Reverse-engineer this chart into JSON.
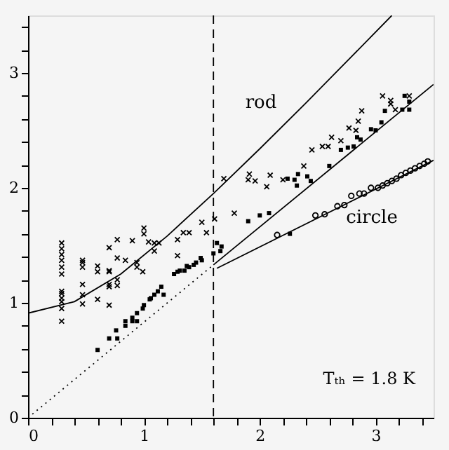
{
  "chart_data": {
    "type": "scatter",
    "xlim": [
      0,
      3.5
    ],
    "ylim": [
      0,
      3.5
    ],
    "xticks": [
      0,
      {
        "value": 0.2,
        "label": null
      },
      {
        "value": 0.4,
        "label": null
      },
      {
        "value": 0.6,
        "label": null
      },
      {
        "value": 0.8,
        "label": null
      },
      1,
      {
        "value": 1.2,
        "label": null
      },
      {
        "value": 1.4,
        "label": null
      },
      {
        "value": 1.6,
        "label": null
      },
      {
        "value": 1.8,
        "label": null
      },
      2,
      {
        "value": 2.2,
        "label": null
      },
      {
        "value": 2.4,
        "label": null
      },
      {
        "value": 2.6,
        "label": null
      },
      {
        "value": 2.8,
        "label": null
      },
      3,
      {
        "value": 3.2,
        "label": null
      },
      {
        "value": 3.4,
        "label": null
      }
    ],
    "yticks": [
      0,
      {
        "value": 0.2,
        "label": null
      },
      {
        "value": 0.4,
        "label": null
      },
      {
        "value": 0.6,
        "label": null
      },
      {
        "value": 0.8,
        "label": null
      },
      1,
      {
        "value": 1.2,
        "label": null
      },
      {
        "value": 1.4,
        "label": null
      },
      {
        "value": 1.6,
        "label": null
      },
      {
        "value": 1.8,
        "label": null
      },
      2,
      {
        "value": 2.2,
        "label": null
      },
      {
        "value": 2.4,
        "label": null
      },
      {
        "value": 2.6,
        "label": null
      },
      {
        "value": 2.8,
        "label": null
      },
      3,
      {
        "value": 3.2,
        "label": null
      },
      {
        "value": 3.4,
        "label": null
      }
    ],
    "grid": false,
    "series": [
      {
        "marker": "cross",
        "color": "#000000",
        "x": [
          0.29,
          0.29,
          0.29,
          0.29,
          0.29,
          0.29,
          0.29,
          0.29,
          0.29,
          0.29,
          0.29,
          0.29,
          0.47,
          0.47,
          0.47,
          0.47,
          0.47,
          0.47,
          0.6,
          0.6,
          0.6,
          0.7,
          0.7,
          0.7,
          0.7,
          0.7,
          0.7,
          0.77,
          0.77,
          0.77,
          0.77,
          0.84,
          0.9,
          0.94,
          0.94,
          0.99,
          1.0,
          1.0,
          1.04,
          1.09,
          1.09,
          1.13,
          1.29,
          1.29,
          1.34,
          1.39,
          1.54,
          1.5,
          1.61,
          1.69,
          1.78,
          1.91,
          1.9,
          1.96,
          2.06,
          2.09,
          2.2,
          2.38,
          2.45,
          2.54,
          2.59,
          2.62,
          2.7,
          2.77,
          2.83,
          2.85,
          2.88,
          3.06,
          3.13,
          3.13,
          3.17,
          3.29
        ],
        "values": [
          1.52,
          1.47,
          1.42,
          1.37,
          1.31,
          1.25,
          1.1,
          1.08,
          1.04,
          1.01,
          0.95,
          0.84,
          1.37,
          1.35,
          1.31,
          1.16,
          1.07,
          0.99,
          1.32,
          1.27,
          1.03,
          1.48,
          1.28,
          1.27,
          1.16,
          1.14,
          0.98,
          1.55,
          1.39,
          1.2,
          1.15,
          1.37,
          1.54,
          1.35,
          1.31,
          1.27,
          1.65,
          1.6,
          1.53,
          1.52,
          1.45,
          1.52,
          1.55,
          1.41,
          1.61,
          1.61,
          1.61,
          1.7,
          1.73,
          2.08,
          1.78,
          2.12,
          2.07,
          2.06,
          2.01,
          2.11,
          2.07,
          2.19,
          2.33,
          2.36,
          2.36,
          2.44,
          2.41,
          2.52,
          2.5,
          2.58,
          2.67,
          2.8,
          2.76,
          2.73,
          2.68,
          2.8
        ]
      },
      {
        "marker": "square",
        "color": "#000000",
        "x": [
          0.6,
          0.7,
          0.77,
          0.76,
          0.84,
          0.84,
          0.9,
          0.9,
          0.94,
          0.94,
          0.99,
          1.0,
          1.05,
          1.06,
          1.09,
          1.12,
          1.15,
          1.17,
          1.26,
          1.29,
          1.31,
          1.35,
          1.37,
          1.39,
          1.43,
          1.45,
          1.49,
          1.5,
          1.6,
          1.63,
          1.66,
          1.67,
          1.9,
          2.0,
          2.08,
          2.26,
          2.24,
          2.3,
          2.32,
          2.33,
          2.41,
          2.44,
          2.6,
          2.7,
          2.76,
          2.81,
          2.84,
          2.87,
          2.96,
          3.0,
          3.05,
          3.08,
          3.23,
          3.25,
          3.29,
          3.29
        ],
        "values": [
          0.59,
          0.69,
          0.69,
          0.76,
          0.8,
          0.84,
          0.87,
          0.84,
          0.91,
          0.84,
          0.95,
          0.98,
          1.03,
          1.04,
          1.07,
          1.1,
          1.14,
          1.07,
          1.25,
          1.27,
          1.28,
          1.28,
          1.32,
          1.31,
          1.33,
          1.35,
          1.39,
          1.37,
          1.43,
          1.52,
          1.45,
          1.49,
          1.71,
          1.76,
          1.78,
          1.6,
          2.08,
          2.07,
          2.02,
          2.12,
          2.1,
          2.06,
          2.19,
          2.33,
          2.35,
          2.36,
          2.44,
          2.42,
          2.51,
          2.5,
          2.57,
          2.67,
          2.68,
          2.8,
          2.68,
          2.75
        ]
      },
      {
        "marker": "circle",
        "color": "#000000",
        "x": [
          2.15,
          2.48,
          2.56,
          2.67,
          2.73,
          2.79,
          2.86,
          2.9,
          2.96,
          3.02,
          3.06,
          3.1,
          3.14,
          3.18,
          3.22,
          3.26,
          3.3,
          3.34,
          3.38,
          3.42,
          3.45
        ],
        "values": [
          1.59,
          1.76,
          1.77,
          1.84,
          1.85,
          1.93,
          1.95,
          1.95,
          2.0,
          2.0,
          2.02,
          2.04,
          2.06,
          2.08,
          2.11,
          2.13,
          2.15,
          2.17,
          2.19,
          2.21,
          2.23
        ]
      },
      {
        "type": "line",
        "line_style": "solid",
        "color": "#000000",
        "x": [
          0,
          0.4,
          0.8,
          1.2,
          1.6,
          2.0,
          2.4,
          2.8,
          3.14
        ],
        "values": [
          0.91,
          1.01,
          1.25,
          1.58,
          1.95,
          2.34,
          2.74,
          3.15,
          3.5
        ]
      },
      {
        "type": "line",
        "line_style": "dotted",
        "color": "#000000",
        "x": [
          0,
          1.6
        ],
        "values": [
          0,
          1.33
        ]
      },
      {
        "type": "line",
        "line_style": "solid",
        "color": "#000000",
        "x": [
          1.6,
          3.5
        ],
        "values": [
          1.33,
          2.9
        ]
      },
      {
        "type": "line",
        "line_style": "solid",
        "color": "#000000",
        "x": [
          1.63,
          3.5
        ],
        "values": [
          1.3,
          2.24
        ]
      }
    ],
    "ref_lines": [
      {
        "axis": "x",
        "value": 1.6,
        "line_style": "dashed",
        "color": "#000000"
      }
    ],
    "annotations": [
      "rod",
      "circle",
      "Tₜₕ = 1.8 K"
    ]
  }
}
